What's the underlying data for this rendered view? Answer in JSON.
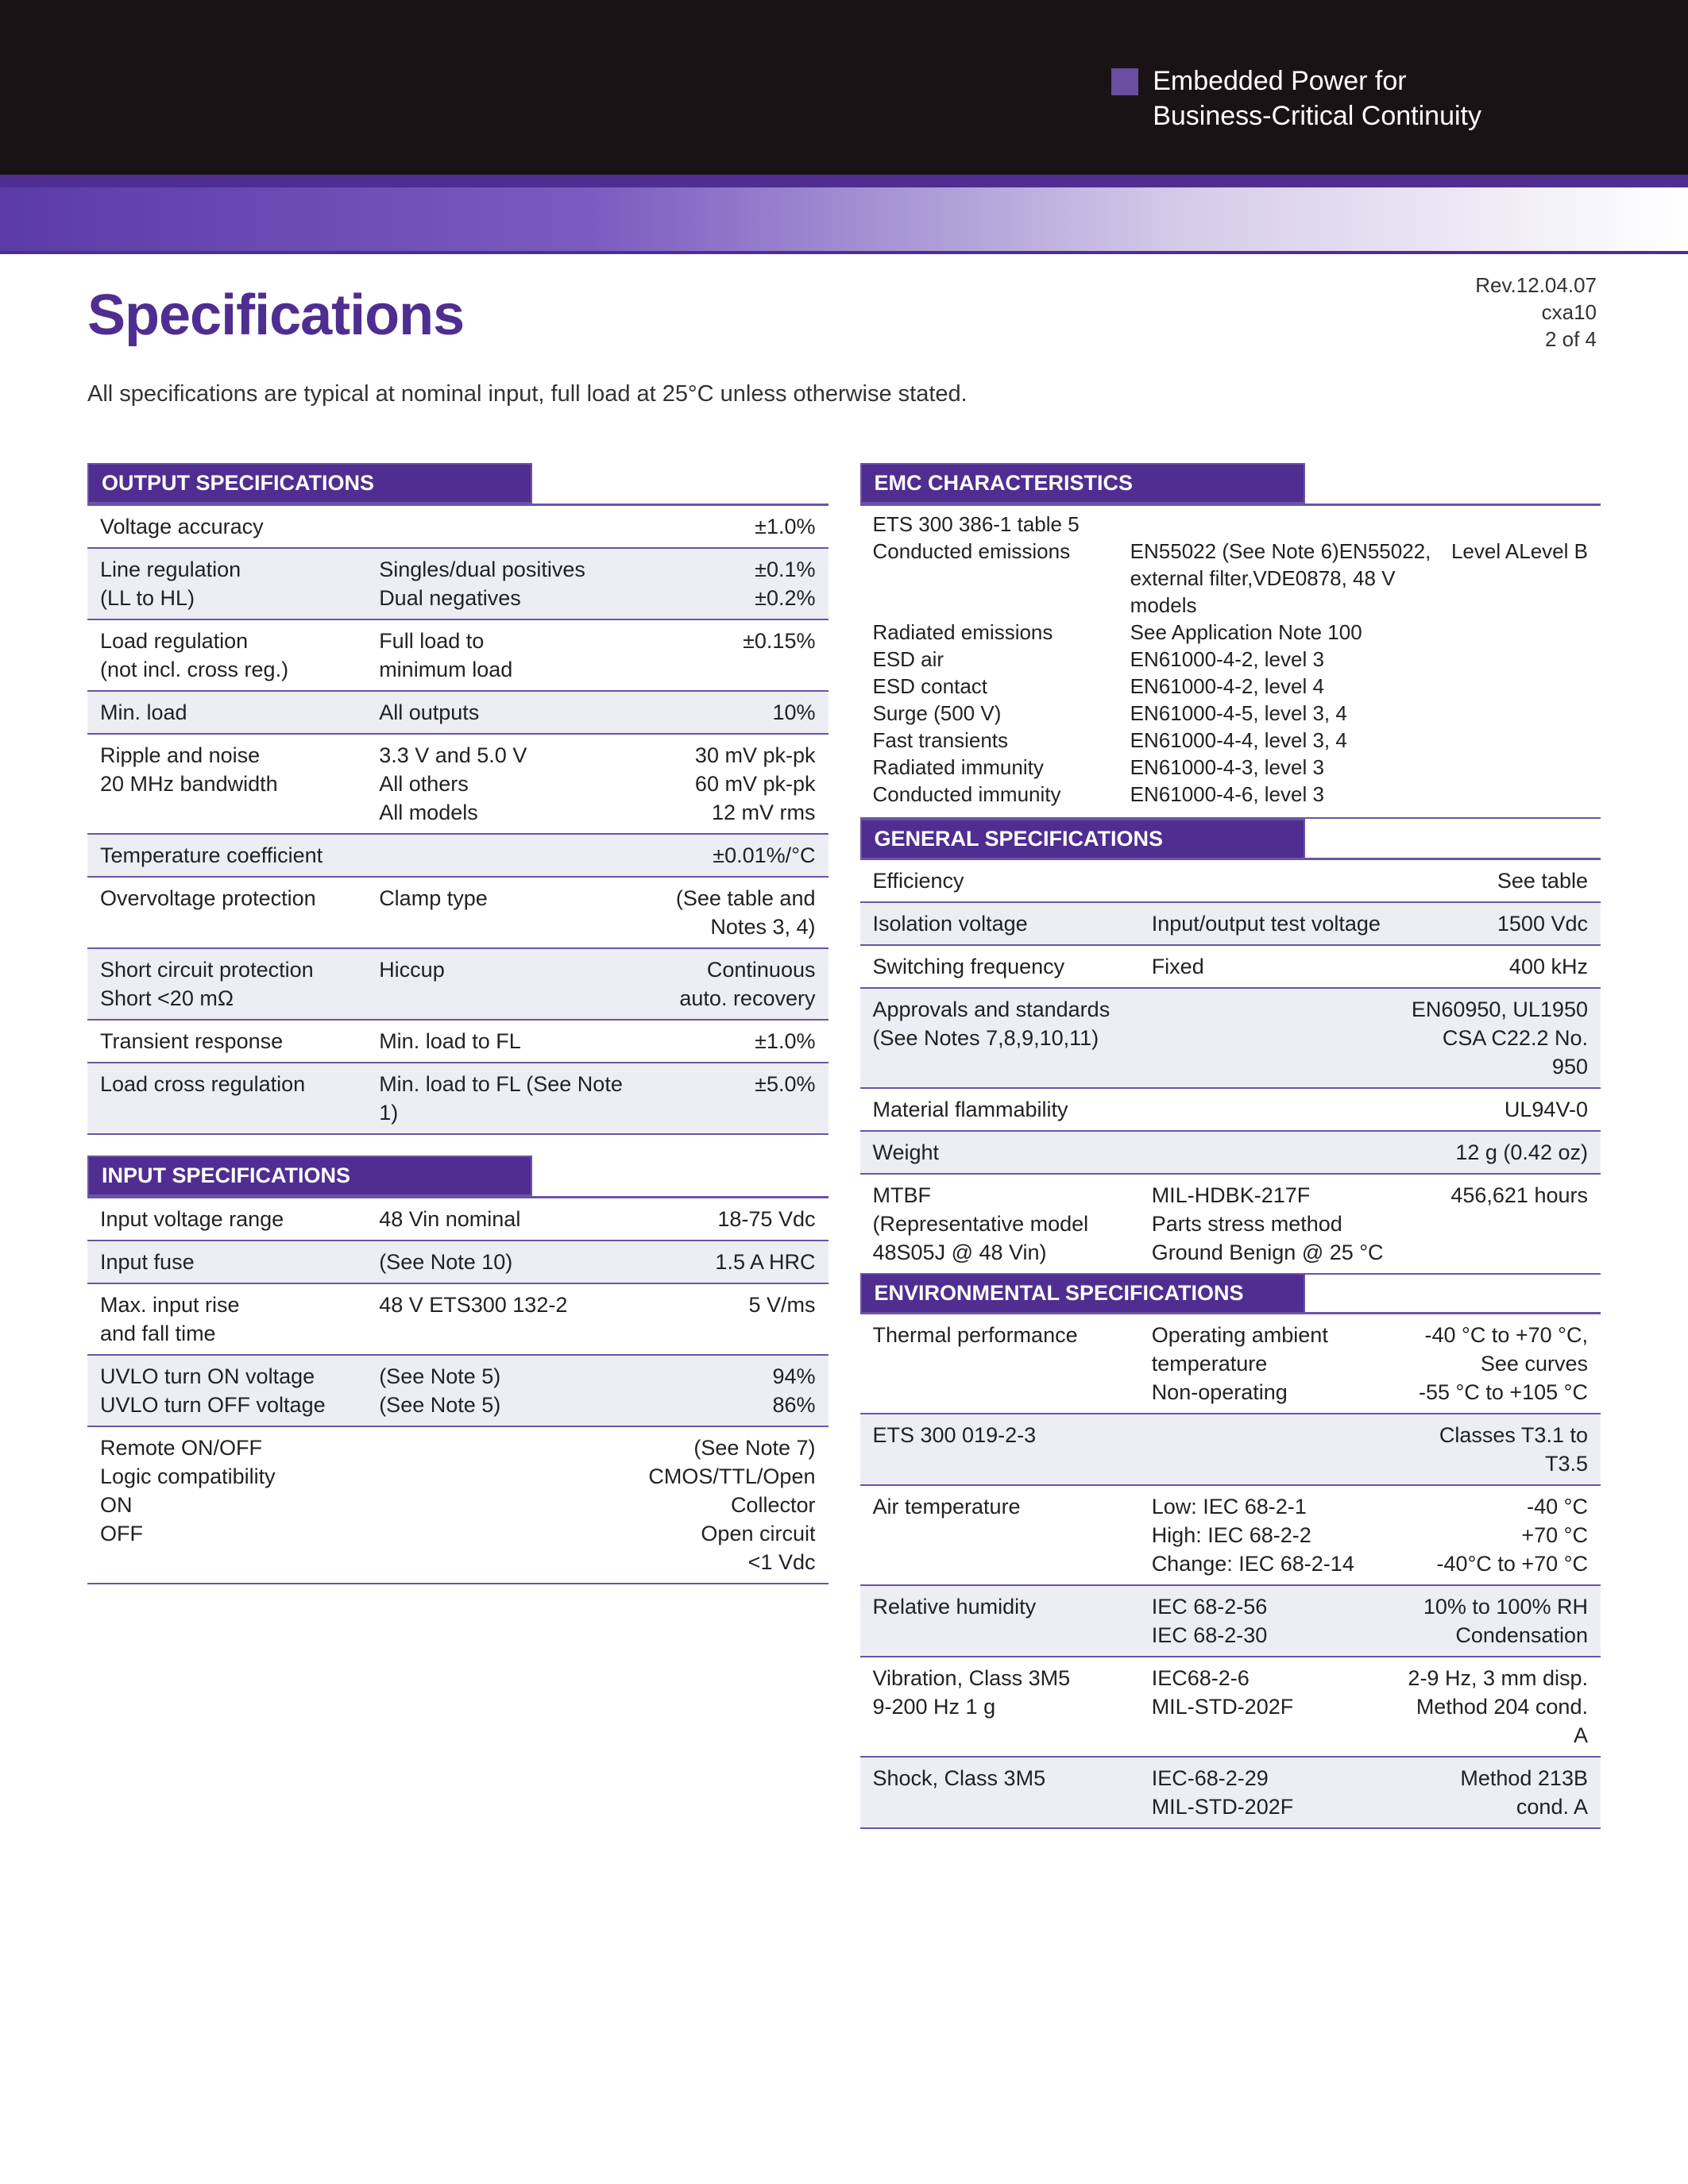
{
  "colors": {
    "brand": "#4f2d91",
    "brand_light": "#6b54a6",
    "row_alt": "#eceef3",
    "black": "#1a1316",
    "white": "#ffffff"
  },
  "header": {
    "tag_square_color": "#6a4ea0",
    "tag_line1": "Embedded Power for",
    "tag_line2": "Business-Critical Continuity"
  },
  "meta": {
    "rev": "Rev.12.04.07",
    "code": "cxa10",
    "page": "2 of 4"
  },
  "title": "Specifications",
  "intro": "All specifications are typical at nominal input, full load at 25°C unless otherwise stated.",
  "output_title": "OUTPUT SPECIFICATIONS",
  "output_rows": [
    {
      "c1": "Voltage accuracy",
      "c2": "",
      "c3": "±1.0%",
      "alt": false
    },
    {
      "c1": "Line regulation\n(LL to HL)",
      "c2": "Singles/dual positives\nDual negatives",
      "c3": "±0.1%\n±0.2%",
      "alt": true
    },
    {
      "c1": "Load regulation\n(not incl. cross reg.)",
      "c2": "Full load to\nminimum load",
      "c3": "±0.15%",
      "alt": false
    },
    {
      "c1": "Min. load",
      "c2": "All outputs",
      "c3": "10%",
      "alt": true
    },
    {
      "c1": "Ripple and noise\n20 MHz bandwidth",
      "c2": "3.3 V and 5.0 V\nAll others\nAll models",
      "c3": "30 mV pk-pk\n60 mV pk-pk\n12 mV rms",
      "alt": false
    },
    {
      "c1": "Temperature coefficient",
      "c2": "",
      "c3": "±0.01%/°C",
      "alt": true
    },
    {
      "c1": "Overvoltage protection",
      "c2": "Clamp type",
      "c3": "(See table and Notes 3, 4)",
      "alt": false
    },
    {
      "c1": "Short circuit protection\nShort <20 mΩ",
      "c2": "Hiccup",
      "c3": "Continuous\nauto. recovery",
      "alt": true
    },
    {
      "c1": "Transient response",
      "c2": "Min. load to FL",
      "c3": "±1.0%",
      "alt": false
    },
    {
      "c1": "Load cross regulation",
      "c2": "Min. load to FL (See Note 1)",
      "c3": "±5.0%",
      "alt": true
    }
  ],
  "input_title": "INPUT SPECIFICATIONS",
  "input_rows": [
    {
      "c1": "Input voltage range",
      "c2": "48 Vin nominal",
      "c3": "18-75 Vdc",
      "alt": false
    },
    {
      "c1": "Input fuse",
      "c2": "(See Note 10)",
      "c3": "1.5 A HRC",
      "alt": true
    },
    {
      "c1": "Max. input rise\nand fall time",
      "c2": "48 V ETS300 132-2",
      "c3": "5 V/ms",
      "alt": false
    },
    {
      "c1": "UVLO turn ON voltage\nUVLO turn OFF voltage",
      "c2": "(See Note 5)\n(See Note 5)",
      "c3": "94%\n86%",
      "alt": true
    },
    {
      "c1": "Remote ON/OFF\nLogic compatibility\nON\nOFF",
      "c2": "",
      "c3": "(See Note 7)\nCMOS/TTL/Open Collector\nOpen circuit\n<1 Vdc",
      "alt": false
    }
  ],
  "emc_title": "EMC CHARACTERISTICS",
  "emc_header": "ETS 300 386-1 table 5",
  "emc_rows": [
    {
      "e1": "Conducted emissions",
      "e2": "EN55022 (See Note 6)\nEN55022, external filter,\nVDE0878, 48 V models",
      "e3": "Level A\nLevel B"
    },
    {
      "e1": "Radiated emissions",
      "e2": "See Application Note 100",
      "e3": ""
    },
    {
      "e1": "ESD air",
      "e2": "EN61000-4-2, level 3",
      "e3": ""
    },
    {
      "e1": "ESD contact",
      "e2": "EN61000-4-2, level 4",
      "e3": ""
    },
    {
      "e1": "Surge (500 V)",
      "e2": "EN61000-4-5, level 3, 4",
      "e3": ""
    },
    {
      "e1": "Fast transients",
      "e2": "EN61000-4-4, level 3, 4",
      "e3": ""
    },
    {
      "e1": "Radiated immunity",
      "e2": "EN61000-4-3, level 3",
      "e3": ""
    },
    {
      "e1": "Conducted immunity",
      "e2": "EN61000-4-6, level 3",
      "e3": ""
    }
  ],
  "general_title": "GENERAL SPECIFICATIONS",
  "general_rows": [
    {
      "c1": "Efficiency",
      "c2": "",
      "c3": "See table",
      "alt": false
    },
    {
      "c1": "Isolation voltage",
      "c2": "Input/output test voltage",
      "c3": "1500 Vdc",
      "alt": true
    },
    {
      "c1": "Switching frequency",
      "c2": "Fixed",
      "c3": "400 kHz",
      "alt": false
    },
    {
      "c1": "Approvals and standards\n(See Notes 7,8,9,10,11)",
      "c2": "",
      "c3": "EN60950, UL1950\nCSA C22.2 No. 950",
      "alt": true
    },
    {
      "c1": "Material flammability",
      "c2": "",
      "c3": "UL94V-0",
      "alt": false
    },
    {
      "c1": "Weight",
      "c2": "",
      "c3": "12 g (0.42 oz)",
      "alt": true
    },
    {
      "c1": "MTBF\n(Representative model\n48S05J @ 48 Vin)",
      "c2": "MIL-HDBK-217F\nParts stress method\nGround Benign @ 25 °C",
      "c3": "456,621 hours",
      "alt": false
    }
  ],
  "env_title": "ENVIRONMENTAL SPECIFICATIONS",
  "env_rows": [
    {
      "c1": "Thermal performance",
      "c2": "Operating ambient\ntemperature\nNon-operating",
      "c3": "-40 °C to +70 °C,\nSee curves\n-55 °C to +105 °C",
      "alt": false
    },
    {
      "c1": "ETS 300 019-2-3",
      "c2": "",
      "c3": "Classes T3.1 to T3.5",
      "alt": true
    },
    {
      "c1": "Air temperature",
      "c2": "Low: IEC 68-2-1\nHigh: IEC 68-2-2\nChange: IEC 68-2-14",
      "c3": "-40 °C\n+70 °C\n-40°C to +70 °C",
      "alt": false
    },
    {
      "c1": "Relative humidity",
      "c2": "IEC 68-2-56\nIEC 68-2-30",
      "c3": "10% to 100% RH\nCondensation",
      "alt": true
    },
    {
      "c1": "Vibration, Class 3M5\n9-200 Hz 1 g",
      "c2": "IEC68-2-6\nMIL-STD-202F",
      "c3": "2-9 Hz, 3 mm disp.\nMethod 204 cond. A",
      "alt": false
    },
    {
      "c1": "Shock, Class 3M5",
      "c2": "IEC-68-2-29\nMIL-STD-202F",
      "c3": "Method 213B cond. A",
      "alt": true
    }
  ]
}
